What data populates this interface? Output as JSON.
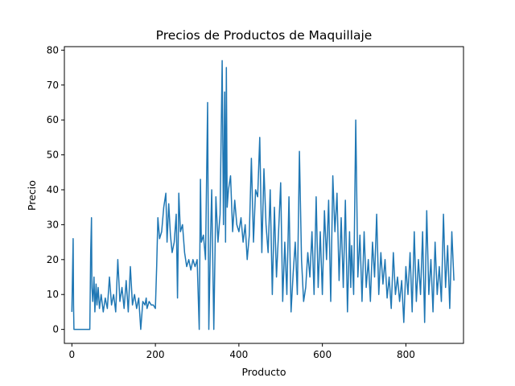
{
  "chart_data": {
    "type": "line",
    "title": "Precios de Productos de Maquillaje",
    "xlabel": "Producto",
    "ylabel": "Precio",
    "xlim": [
      -18,
      938
    ],
    "ylim": [
      -4,
      81
    ],
    "xticks": [
      0,
      200,
      400,
      600,
      800
    ],
    "yticks": [
      0,
      10,
      20,
      30,
      40,
      50,
      60,
      70,
      80
    ],
    "grid": false,
    "legend": "none",
    "series": [
      {
        "color": "#1f77b4",
        "x": [
          0,
          3,
          4,
          5,
          6,
          10,
          20,
          30,
          40,
          43,
          45,
          47,
          48,
          50,
          53,
          55,
          58,
          60,
          63,
          66,
          70,
          75,
          80,
          85,
          90,
          95,
          100,
          105,
          110,
          115,
          120,
          125,
          130,
          135,
          140,
          145,
          150,
          155,
          160,
          165,
          170,
          175,
          178,
          180,
          185,
          190,
          195,
          200,
          203,
          206,
          210,
          215,
          220,
          225,
          228,
          232,
          236,
          240,
          245,
          250,
          253,
          256,
          260,
          265,
          270,
          275,
          280,
          285,
          290,
          295,
          300,
          305,
          308,
          310,
          315,
          320,
          325,
          328,
          332,
          335,
          340,
          345,
          350,
          355,
          360,
          363,
          366,
          368,
          370,
          372,
          375,
          380,
          385,
          390,
          395,
          400,
          405,
          410,
          415,
          420,
          425,
          430,
          435,
          440,
          445,
          450,
          455,
          460,
          465,
          470,
          475,
          480,
          485,
          490,
          495,
          500,
          505,
          510,
          515,
          520,
          525,
          530,
          535,
          540,
          545,
          550,
          555,
          560,
          565,
          570,
          575,
          580,
          585,
          590,
          595,
          600,
          605,
          610,
          615,
          620,
          625,
          630,
          635,
          640,
          645,
          650,
          655,
          660,
          665,
          668,
          670,
          675,
          680,
          685,
          690,
          695,
          700,
          705,
          710,
          715,
          720,
          725,
          730,
          735,
          740,
          745,
          750,
          755,
          760,
          765,
          770,
          775,
          780,
          785,
          790,
          795,
          800,
          805,
          810,
          815,
          820,
          825,
          830,
          835,
          840,
          845,
          850,
          855,
          860,
          865,
          870,
          875,
          880,
          885,
          890,
          895,
          900,
          905,
          910,
          915
        ],
        "values": [
          5,
          26,
          7,
          0,
          0,
          0,
          0,
          0,
          0,
          0,
          22,
          32,
          12,
          8,
          15,
          5,
          13,
          7,
          12,
          6,
          10,
          5,
          9,
          6,
          15,
          7,
          10,
          5,
          20,
          8,
          12,
          6,
          14,
          5,
          18,
          7,
          10,
          6,
          9,
          0,
          8,
          7,
          9,
          6,
          8,
          7,
          7,
          6,
          18,
          32,
          26,
          28,
          35,
          39,
          25,
          36,
          27,
          22,
          25,
          33,
          9,
          39,
          28,
          30,
          22,
          18,
          20,
          17,
          20,
          18,
          20,
          0,
          43,
          25,
          27,
          20,
          65,
          0,
          26,
          40,
          0,
          38,
          25,
          33,
          77,
          30,
          68,
          25,
          75,
          35,
          40,
          44,
          28,
          37,
          30,
          28,
          32,
          25,
          30,
          20,
          27,
          49,
          25,
          40,
          38,
          55,
          22,
          46,
          30,
          22,
          40,
          10,
          35,
          15,
          28,
          42,
          8,
          25,
          10,
          38,
          5,
          16,
          25,
          10,
          51,
          20,
          8,
          12,
          22,
          15,
          28,
          10,
          38,
          12,
          28,
          10,
          34,
          20,
          37,
          8,
          44,
          28,
          39,
          14,
          32,
          12,
          37,
          5,
          28,
          12,
          24,
          10,
          60,
          15,
          27,
          8,
          28,
          12,
          20,
          8,
          25,
          15,
          33,
          10,
          22,
          13,
          20,
          9,
          15,
          6,
          22,
          10,
          15,
          8,
          14,
          2,
          18,
          10,
          22,
          5,
          28,
          8,
          20,
          10,
          28,
          2,
          34,
          10,
          20,
          5,
          25,
          10,
          18,
          8,
          33,
          12,
          24,
          6,
          28,
          14
        ]
      }
    ]
  }
}
